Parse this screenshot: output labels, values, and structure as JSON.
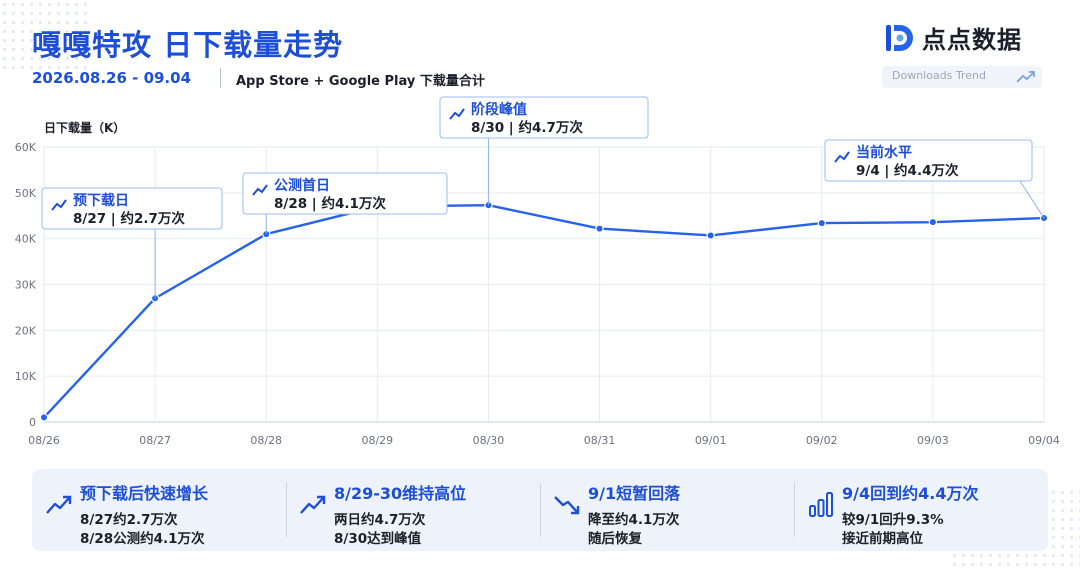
{
  "header": {
    "title": "嘎嘎特攻 日下载量走势",
    "date_range": "2026.08.26 - 09.04",
    "subtitle": "App Store + Google Play 下载量合计",
    "brand": "点点数据",
    "badge": "Downloads Trend"
  },
  "chart_data": {
    "type": "line",
    "ylabel": "日下载量（K）",
    "x": [
      "08/26",
      "08/27",
      "08/28",
      "08/29",
      "08/30",
      "08/31",
      "09/01",
      "09/02",
      "09/03",
      "09/04"
    ],
    "series": [
      {
        "values": [
          1,
          27,
          41,
          47,
          47.3,
          42.2,
          40.7,
          43.4,
          43.6,
          44.5
        ]
      }
    ],
    "ylim": [
      0,
      60
    ],
    "yticks": [
      0,
      10,
      20,
      30,
      40,
      50,
      60
    ],
    "ytick_labels": [
      "0",
      "10K",
      "20K",
      "30K",
      "40K",
      "50K",
      "60K"
    ],
    "grid": true,
    "color": "#2563eb",
    "annotations": [
      {
        "point": 1,
        "title": "预下载日",
        "text": "8/27 | 约2.7万次"
      },
      {
        "point": 2,
        "title": "公测首日",
        "text": "8/28 | 约4.1万次"
      },
      {
        "point": 4,
        "title": "阶段峰值",
        "text": "8/30 | 约4.7万次"
      },
      {
        "point": 9,
        "title": "当前水平",
        "text": "9/4 | 约4.4万次"
      }
    ]
  },
  "insights": [
    {
      "icon": "trend-up-icon",
      "title": "预下载后快速增长",
      "line1": "8/27约2.7万次",
      "line2": "8/28公测约4.1万次"
    },
    {
      "icon": "trend-up-icon",
      "title": "8/29-30维持高位",
      "line1": "两日约4.7万次",
      "line2": "8/30达到峰值"
    },
    {
      "icon": "trend-down-icon",
      "title": "9/1短暂回落",
      "line1": "降至约4.1万次",
      "line2": "随后恢复"
    },
    {
      "icon": "bar-chart-icon",
      "title": "9/4回到约4.4万次",
      "line1": "较9/1回升9.3%",
      "line2": "接近前期高位"
    }
  ]
}
